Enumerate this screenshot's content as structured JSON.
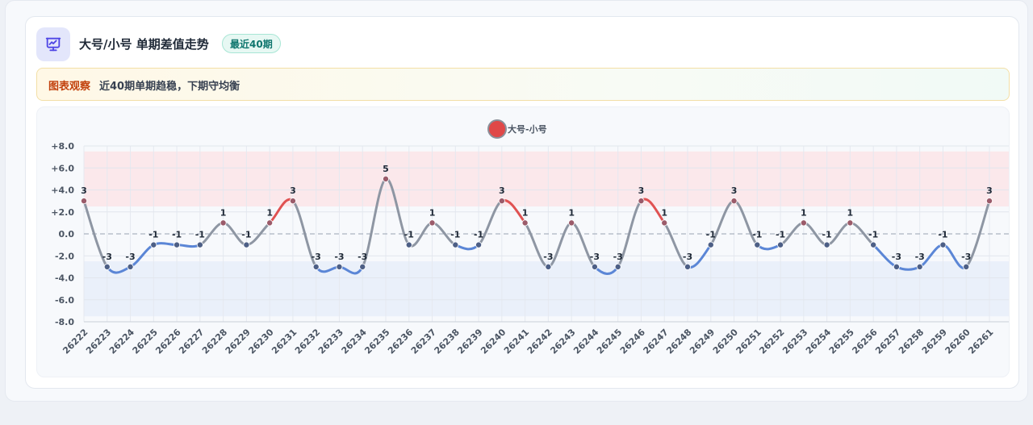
{
  "header": {
    "title": "大号/小号 单期差值走势",
    "badge": "最近40期",
    "icon": "chart-presentation-icon"
  },
  "insight": {
    "label": "图表观察",
    "text": "近40期单期趋稳，下期守均衡"
  },
  "colors": {
    "line_neutral": "#8e96a3",
    "line_positive": "#e05252",
    "line_negative": "#5b86d6",
    "band_positive": "#fbe5e9",
    "band_negative": "#e8eef9",
    "legend_marker": "#e04848",
    "icon_accent": "#4f46e5"
  },
  "chart_data": {
    "type": "line",
    "categories": [
      "26222",
      "26223",
      "26224",
      "26225",
      "26226",
      "26227",
      "26228",
      "26229",
      "26230",
      "26231",
      "26232",
      "26233",
      "26234",
      "26235",
      "26236",
      "26237",
      "26238",
      "26239",
      "26240",
      "26241",
      "26242",
      "26243",
      "26244",
      "26245",
      "26246",
      "26247",
      "26248",
      "26249",
      "26250",
      "26251",
      "26252",
      "26253",
      "26254",
      "26255",
      "26256",
      "26257",
      "26258",
      "26259",
      "26260",
      "26261"
    ],
    "series": [
      {
        "name": "大号-小号",
        "values": [
          3,
          -3,
          -3,
          -1,
          -1,
          -1,
          1,
          -1,
          1,
          3,
          -3,
          -3,
          -3,
          5,
          -1,
          1,
          -1,
          -1,
          3,
          1,
          -3,
          1,
          -3,
          -3,
          3,
          1,
          -3,
          -1,
          3,
          -1,
          -1,
          1,
          -1,
          1,
          -1,
          -3,
          -3,
          -1,
          -3,
          3
        ]
      }
    ],
    "ylim": [
      -8,
      8
    ],
    "yticks": [
      "+8.0",
      "+6.0",
      "+4.0",
      "+2.0",
      "0.0",
      "-2.0",
      "-4.0",
      "-6.0",
      "-8.0"
    ],
    "bands": [
      {
        "from": 2.5,
        "to": 7.5,
        "kind": "positive"
      },
      {
        "from": -7.5,
        "to": -2.5,
        "kind": "negative"
      }
    ],
    "legend": "top-center",
    "grid": true
  }
}
